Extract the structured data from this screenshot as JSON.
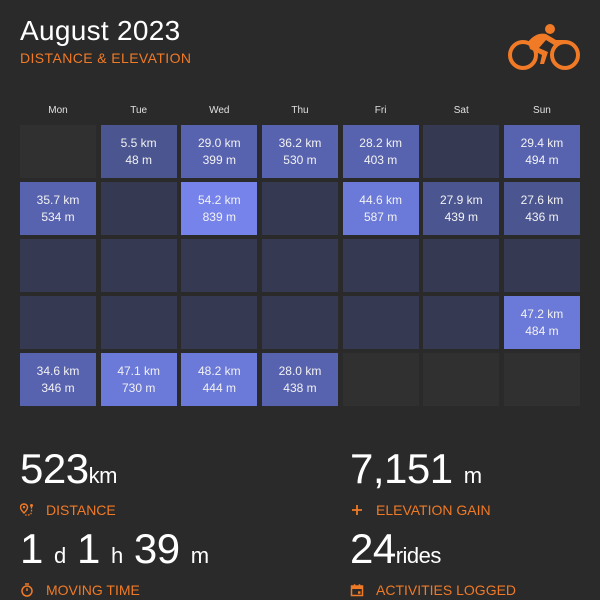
{
  "header": {
    "title": "August 2023",
    "subtitle": "DISTANCE & ELEVATION",
    "logo_icon": "cyclist-icon"
  },
  "colors": {
    "accent": "#f07a26",
    "background": "#2a2a2a"
  },
  "weekdays": [
    "Mon",
    "Tue",
    "Wed",
    "Thu",
    "Fri",
    "Sat",
    "Sun"
  ],
  "calendar": [
    {
      "dist": "",
      "elev": "",
      "kind": "empty"
    },
    {
      "dist": "5.5 km",
      "elev": "48 m",
      "kind": "l1"
    },
    {
      "dist": "29.0 km",
      "elev": "399 m",
      "kind": "l2"
    },
    {
      "dist": "36.2 km",
      "elev": "530 m",
      "kind": "l2"
    },
    {
      "dist": "28.2 km",
      "elev": "403 m",
      "kind": "l2"
    },
    {
      "dist": "",
      "elev": "",
      "kind": "none"
    },
    {
      "dist": "29.4 km",
      "elev": "494 m",
      "kind": "l2"
    },
    {
      "dist": "35.7 km",
      "elev": "534 m",
      "kind": "l2"
    },
    {
      "dist": "",
      "elev": "",
      "kind": "none"
    },
    {
      "dist": "54.2 km",
      "elev": "839 m",
      "kind": "l4"
    },
    {
      "dist": "",
      "elev": "",
      "kind": "none"
    },
    {
      "dist": "44.6 km",
      "elev": "587 m",
      "kind": "l3"
    },
    {
      "dist": "27.9 km",
      "elev": "439 m",
      "kind": "l1"
    },
    {
      "dist": "27.6 km",
      "elev": "436 m",
      "kind": "l1"
    },
    {
      "dist": "",
      "elev": "",
      "kind": "none"
    },
    {
      "dist": "",
      "elev": "",
      "kind": "none"
    },
    {
      "dist": "",
      "elev": "",
      "kind": "none"
    },
    {
      "dist": "",
      "elev": "",
      "kind": "none"
    },
    {
      "dist": "",
      "elev": "",
      "kind": "none"
    },
    {
      "dist": "",
      "elev": "",
      "kind": "none"
    },
    {
      "dist": "",
      "elev": "",
      "kind": "none"
    },
    {
      "dist": "",
      "elev": "",
      "kind": "none"
    },
    {
      "dist": "",
      "elev": "",
      "kind": "none"
    },
    {
      "dist": "",
      "elev": "",
      "kind": "none"
    },
    {
      "dist": "",
      "elev": "",
      "kind": "none"
    },
    {
      "dist": "",
      "elev": "",
      "kind": "none"
    },
    {
      "dist": "",
      "elev": "",
      "kind": "none"
    },
    {
      "dist": "47.2 km",
      "elev": "484 m",
      "kind": "l3"
    },
    {
      "dist": "34.6 km",
      "elev": "346 m",
      "kind": "l2"
    },
    {
      "dist": "47.1 km",
      "elev": "730 m",
      "kind": "l3"
    },
    {
      "dist": "48.2 km",
      "elev": "444 m",
      "kind": "l3"
    },
    {
      "dist": "28.0 km",
      "elev": "438 m",
      "kind": "l2"
    },
    {
      "dist": "",
      "elev": "",
      "kind": "empty"
    },
    {
      "dist": "",
      "elev": "",
      "kind": "empty"
    },
    {
      "dist": "",
      "elev": "",
      "kind": "empty"
    }
  ],
  "stats": {
    "distance": {
      "value": "523",
      "unit": "km",
      "label": "DISTANCE",
      "icon": "route-pin-icon"
    },
    "elevation": {
      "value": "7,151",
      "unit": "m",
      "label": "ELEVATION GAIN",
      "icon": "plus-icon"
    },
    "moving_time": {
      "d_value": "1",
      "d_unit": "d",
      "h_value": "1",
      "h_unit": "h",
      "m_value": "39",
      "m_unit": "m",
      "label": "MOVING TIME",
      "icon": "stopwatch-icon"
    },
    "activities": {
      "value": "24",
      "unit": "rides",
      "label": "ACTIVITIES LOGGED",
      "icon": "calendar-icon"
    }
  }
}
